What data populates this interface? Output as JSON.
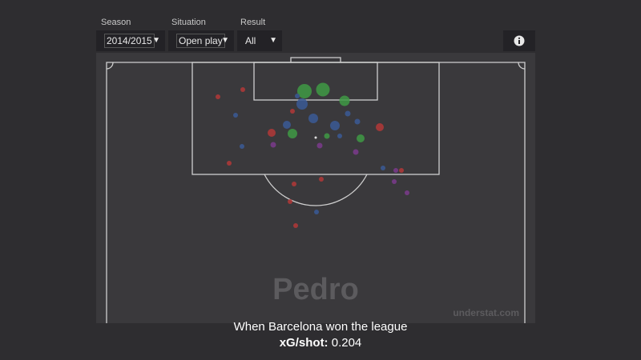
{
  "filters": [
    {
      "label": "Season",
      "value": "2014/2015"
    },
    {
      "label": "Situation",
      "value": "Open play"
    },
    {
      "label": "Result",
      "value": "All"
    }
  ],
  "player": "Pedro",
  "watermark": "understat.com",
  "caption": {
    "title": "When Barcelona won the league",
    "stat_label": "xG/shot:",
    "stat_value": "0.204"
  }
}
